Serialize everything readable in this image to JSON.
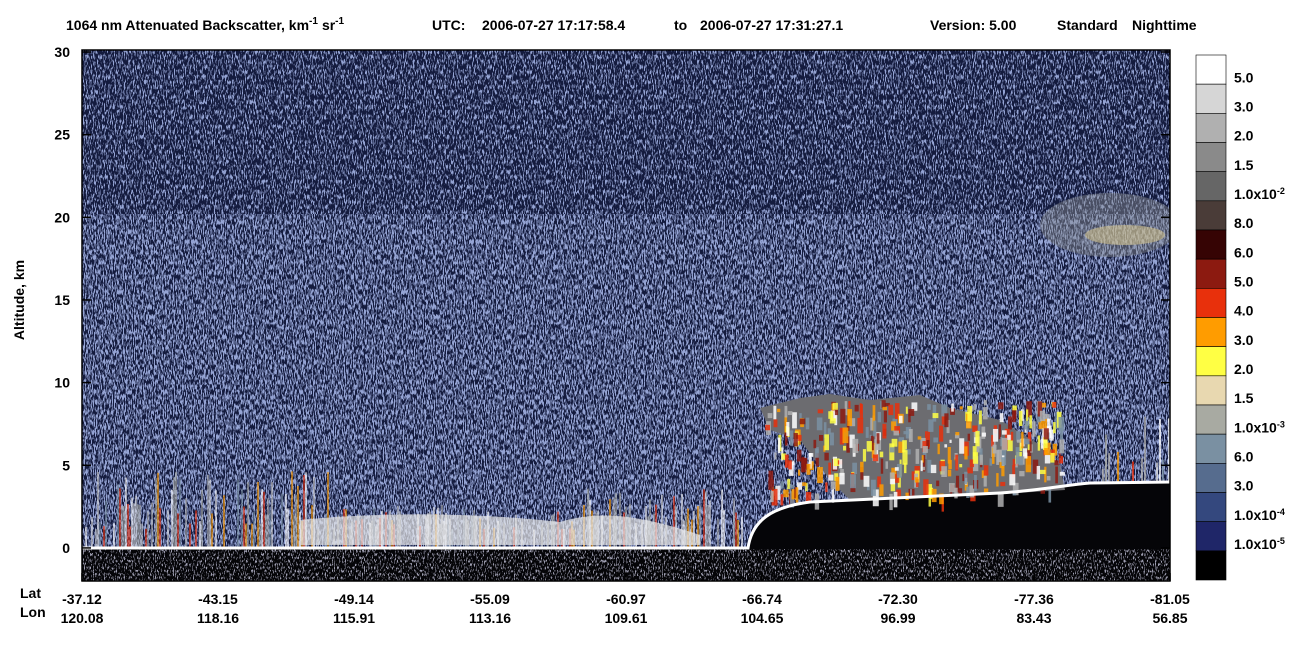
{
  "chart_data": {
    "type": "curtain",
    "title": {
      "main": "1064 nm Attenuated Backscatter, km",
      "sup1": "-1",
      "unit2": "sr",
      "sup2": "-1",
      "utc_label": "UTC:",
      "start": "2006-07-27 17:17:58.4",
      "to": "to",
      "end": "2006-07-27 17:31:27.1",
      "version": "Version: 5.00",
      "product": "Standard",
      "mode": "Nighttime"
    },
    "y_label": "Altitude, km",
    "ylim": [
      -2,
      30
    ],
    "yticks": [
      0,
      5,
      10,
      15,
      20,
      25,
      30
    ],
    "x_row_labels": [
      "Lat",
      "Lon"
    ],
    "lat": [
      "-37.12",
      "-43.15",
      "-49.14",
      "-55.09",
      "-60.97",
      "-66.74",
      "-72.30",
      "-77.36",
      "-81.05"
    ],
    "lon": [
      "120.08",
      "118.16",
      "115.91",
      "113.16",
      "109.61",
      "104.65",
      "96.99",
      "83.43",
      "56.85"
    ],
    "colorbar": [
      {
        "color": "#ffffff",
        "label": "5.0"
      },
      {
        "color": "#d6d6d6",
        "label": "3.0"
      },
      {
        "color": "#b0b0b0",
        "label": "2.0"
      },
      {
        "color": "#8a8a8a",
        "label": "1.5"
      },
      {
        "color": "#666666",
        "label": "1.0x10",
        "exp": "-2"
      },
      {
        "color": "#4a3c38",
        "label": "8.0"
      },
      {
        "color": "#360404",
        "label": "6.0"
      },
      {
        "color": "#8c1a10",
        "label": "5.0"
      },
      {
        "color": "#e8300c",
        "label": "4.0"
      },
      {
        "color": "#ff9c00",
        "label": "3.0"
      },
      {
        "color": "#ffff44",
        "label": "2.0"
      },
      {
        "color": "#e8d8b0",
        "label": "1.5"
      },
      {
        "color": "#a8aaa2",
        "label": "1.0x10",
        "exp": "-3"
      },
      {
        "color": "#7a90a2",
        "label": "6.0"
      },
      {
        "color": "#566c8e",
        "label": "3.0"
      },
      {
        "color": "#34487e",
        "label": "1.0x10",
        "exp": "-4"
      },
      {
        "color": "#1f2668",
        "label": "1.0x10",
        "exp": "-5"
      },
      {
        "color": "#000000"
      }
    ]
  }
}
